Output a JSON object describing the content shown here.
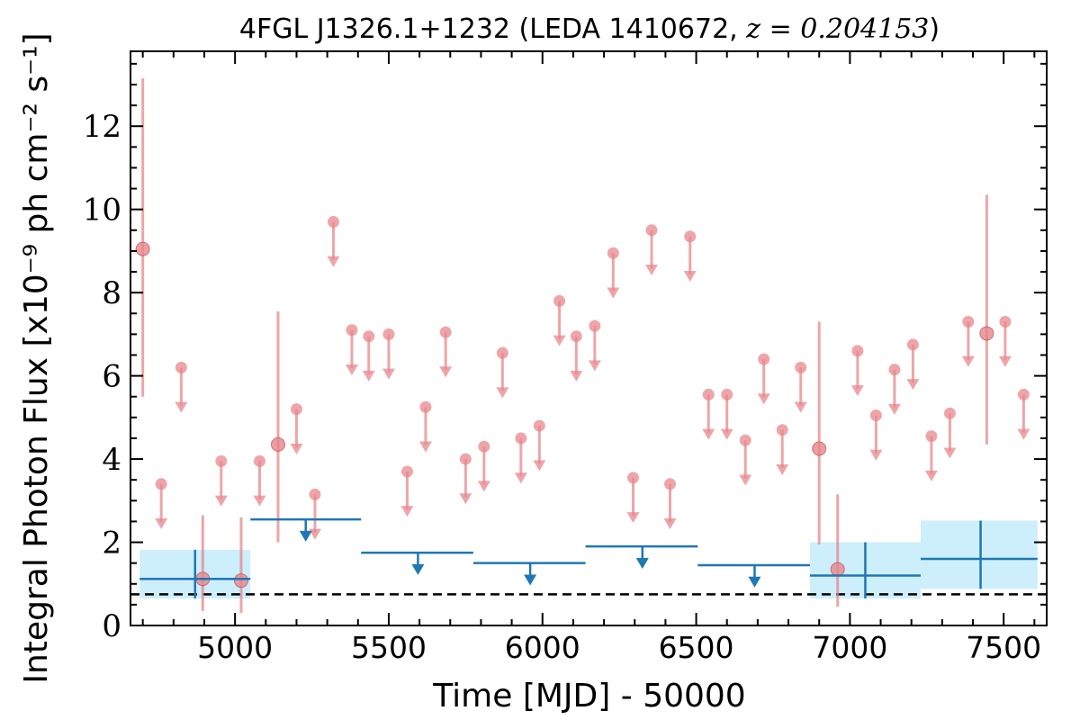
{
  "chart_data": {
    "type": "scatter",
    "title": "4FGL J1326.1+1232 (LEDA 1410672, z = 0.204153)",
    "title_parts": {
      "prefix": "4FGL J1326.1+1232 (LEDA 1410672, ",
      "math": "z = 0.204153",
      "suffix": ")"
    },
    "xlabel": "Time [MJD] - 50000",
    "ylabel": "Integral Photon Flux [x10⁻⁹ ph cm⁻² s⁻¹]",
    "xlim": [
      4660,
      7640
    ],
    "ylim": [
      0,
      13.8
    ],
    "x_ticks": [
      5000,
      5500,
      6000,
      6500,
      7000,
      7500
    ],
    "y_ticks": [
      0,
      2,
      4,
      6,
      8,
      10,
      12
    ],
    "reference_line_y": 0.75,
    "colors": {
      "short_bins": "#e8878c",
      "long_bins": "#1f77b4",
      "error_band": "#cdeefb",
      "reference_line": "#000000"
    },
    "short_bin_detections": [
      {
        "x": 4700,
        "y": 9.05,
        "ylow": 5.5,
        "yhigh": 13.15
      },
      {
        "x": 4895,
        "y": 1.12,
        "ylow": 0.35,
        "yhigh": 2.65
      },
      {
        "x": 5020,
        "y": 1.08,
        "ylow": 0.3,
        "yhigh": 2.6
      },
      {
        "x": 5140,
        "y": 4.35,
        "ylow": 2.0,
        "yhigh": 7.55
      },
      {
        "x": 6900,
        "y": 4.25,
        "ylow": 1.95,
        "yhigh": 7.3
      },
      {
        "x": 6960,
        "y": 1.35,
        "ylow": 0.45,
        "yhigh": 3.15
      },
      {
        "x": 7445,
        "y": 7.02,
        "ylow": 4.35,
        "yhigh": 10.35
      }
    ],
    "short_bin_upper_limits": [
      {
        "x": 4760,
        "y": 3.4
      },
      {
        "x": 4825,
        "y": 6.2
      },
      {
        "x": 4955,
        "y": 3.95
      },
      {
        "x": 5080,
        "y": 3.95
      },
      {
        "x": 5200,
        "y": 5.2
      },
      {
        "x": 5260,
        "y": 3.15
      },
      {
        "x": 5320,
        "y": 9.7
      },
      {
        "x": 5380,
        "y": 7.1
      },
      {
        "x": 5435,
        "y": 6.95
      },
      {
        "x": 5500,
        "y": 7.0
      },
      {
        "x": 5560,
        "y": 3.7
      },
      {
        "x": 5620,
        "y": 5.25
      },
      {
        "x": 5685,
        "y": 7.05
      },
      {
        "x": 5750,
        "y": 4.0
      },
      {
        "x": 5810,
        "y": 4.3
      },
      {
        "x": 5870,
        "y": 6.55
      },
      {
        "x": 5930,
        "y": 4.5
      },
      {
        "x": 5990,
        "y": 4.8
      },
      {
        "x": 6055,
        "y": 7.8
      },
      {
        "x": 6110,
        "y": 6.95
      },
      {
        "x": 6170,
        "y": 7.2
      },
      {
        "x": 6230,
        "y": 8.95
      },
      {
        "x": 6295,
        "y": 3.55
      },
      {
        "x": 6355,
        "y": 9.5
      },
      {
        "x": 6415,
        "y": 3.4
      },
      {
        "x": 6480,
        "y": 9.35
      },
      {
        "x": 6540,
        "y": 5.55
      },
      {
        "x": 6600,
        "y": 5.55
      },
      {
        "x": 6660,
        "y": 4.45
      },
      {
        "x": 6720,
        "y": 6.4
      },
      {
        "x": 6780,
        "y": 4.7
      },
      {
        "x": 6840,
        "y": 6.2
      },
      {
        "x": 7025,
        "y": 6.6
      },
      {
        "x": 7085,
        "y": 5.05
      },
      {
        "x": 7145,
        "y": 6.15
      },
      {
        "x": 7205,
        "y": 6.75
      },
      {
        "x": 7265,
        "y": 4.55
      },
      {
        "x": 7325,
        "y": 5.1
      },
      {
        "x": 7385,
        "y": 7.3
      },
      {
        "x": 7505,
        "y": 7.3
      },
      {
        "x": 7565,
        "y": 5.55
      }
    ],
    "long_bin_detections": [
      {
        "x": 4870,
        "x0": 4690,
        "x1": 5050,
        "y": 1.12,
        "ylow": 0.65,
        "yhigh": 1.82
      },
      {
        "x": 7050,
        "x0": 6870,
        "x1": 7230,
        "y": 1.2,
        "ylow": 0.65,
        "yhigh": 2.0
      },
      {
        "x": 7425,
        "x0": 7230,
        "x1": 7610,
        "y": 1.6,
        "ylow": 0.88,
        "yhigh": 2.52
      }
    ],
    "long_bin_upper_limits": [
      {
        "x": 5230,
        "x0": 5050,
        "x1": 5410,
        "y": 2.55
      },
      {
        "x": 5595,
        "x0": 5410,
        "x1": 5775,
        "y": 1.75
      },
      {
        "x": 5960,
        "x0": 5775,
        "x1": 6140,
        "y": 1.5
      },
      {
        "x": 6325,
        "x0": 6140,
        "x1": 6505,
        "y": 1.9
      },
      {
        "x": 6690,
        "x0": 6505,
        "x1": 6870,
        "y": 1.45
      }
    ]
  }
}
